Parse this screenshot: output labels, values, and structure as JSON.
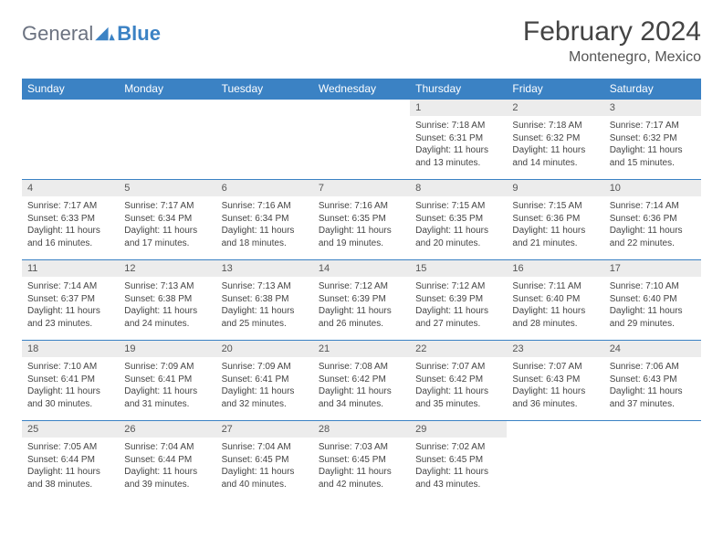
{
  "brand": {
    "name1": "General",
    "name2": "Blue"
  },
  "title": "February 2024",
  "location": "Montenegro, Mexico",
  "colors": {
    "header_bg": "#3b82c4",
    "daynum_bg": "#ececec",
    "border": "#3b82c4"
  },
  "weekdays": [
    "Sunday",
    "Monday",
    "Tuesday",
    "Wednesday",
    "Thursday",
    "Friday",
    "Saturday"
  ],
  "grid": [
    [
      null,
      null,
      null,
      null,
      {
        "n": "1",
        "sr": "7:18 AM",
        "ss": "6:31 PM",
        "dlh": "11",
        "dlm": "13"
      },
      {
        "n": "2",
        "sr": "7:18 AM",
        "ss": "6:32 PM",
        "dlh": "11",
        "dlm": "14"
      },
      {
        "n": "3",
        "sr": "7:17 AM",
        "ss": "6:32 PM",
        "dlh": "11",
        "dlm": "15"
      }
    ],
    [
      {
        "n": "4",
        "sr": "7:17 AM",
        "ss": "6:33 PM",
        "dlh": "11",
        "dlm": "16"
      },
      {
        "n": "5",
        "sr": "7:17 AM",
        "ss": "6:34 PM",
        "dlh": "11",
        "dlm": "17"
      },
      {
        "n": "6",
        "sr": "7:16 AM",
        "ss": "6:34 PM",
        "dlh": "11",
        "dlm": "18"
      },
      {
        "n": "7",
        "sr": "7:16 AM",
        "ss": "6:35 PM",
        "dlh": "11",
        "dlm": "19"
      },
      {
        "n": "8",
        "sr": "7:15 AM",
        "ss": "6:35 PM",
        "dlh": "11",
        "dlm": "20"
      },
      {
        "n": "9",
        "sr": "7:15 AM",
        "ss": "6:36 PM",
        "dlh": "11",
        "dlm": "21"
      },
      {
        "n": "10",
        "sr": "7:14 AM",
        "ss": "6:36 PM",
        "dlh": "11",
        "dlm": "22"
      }
    ],
    [
      {
        "n": "11",
        "sr": "7:14 AM",
        "ss": "6:37 PM",
        "dlh": "11",
        "dlm": "23"
      },
      {
        "n": "12",
        "sr": "7:13 AM",
        "ss": "6:38 PM",
        "dlh": "11",
        "dlm": "24"
      },
      {
        "n": "13",
        "sr": "7:13 AM",
        "ss": "6:38 PM",
        "dlh": "11",
        "dlm": "25"
      },
      {
        "n": "14",
        "sr": "7:12 AM",
        "ss": "6:39 PM",
        "dlh": "11",
        "dlm": "26"
      },
      {
        "n": "15",
        "sr": "7:12 AM",
        "ss": "6:39 PM",
        "dlh": "11",
        "dlm": "27"
      },
      {
        "n": "16",
        "sr": "7:11 AM",
        "ss": "6:40 PM",
        "dlh": "11",
        "dlm": "28"
      },
      {
        "n": "17",
        "sr": "7:10 AM",
        "ss": "6:40 PM",
        "dlh": "11",
        "dlm": "29"
      }
    ],
    [
      {
        "n": "18",
        "sr": "7:10 AM",
        "ss": "6:41 PM",
        "dlh": "11",
        "dlm": "30"
      },
      {
        "n": "19",
        "sr": "7:09 AM",
        "ss": "6:41 PM",
        "dlh": "11",
        "dlm": "31"
      },
      {
        "n": "20",
        "sr": "7:09 AM",
        "ss": "6:41 PM",
        "dlh": "11",
        "dlm": "32"
      },
      {
        "n": "21",
        "sr": "7:08 AM",
        "ss": "6:42 PM",
        "dlh": "11",
        "dlm": "34"
      },
      {
        "n": "22",
        "sr": "7:07 AM",
        "ss": "6:42 PM",
        "dlh": "11",
        "dlm": "35"
      },
      {
        "n": "23",
        "sr": "7:07 AM",
        "ss": "6:43 PM",
        "dlh": "11",
        "dlm": "36"
      },
      {
        "n": "24",
        "sr": "7:06 AM",
        "ss": "6:43 PM",
        "dlh": "11",
        "dlm": "37"
      }
    ],
    [
      {
        "n": "25",
        "sr": "7:05 AM",
        "ss": "6:44 PM",
        "dlh": "11",
        "dlm": "38"
      },
      {
        "n": "26",
        "sr": "7:04 AM",
        "ss": "6:44 PM",
        "dlh": "11",
        "dlm": "39"
      },
      {
        "n": "27",
        "sr": "7:04 AM",
        "ss": "6:45 PM",
        "dlh": "11",
        "dlm": "40"
      },
      {
        "n": "28",
        "sr": "7:03 AM",
        "ss": "6:45 PM",
        "dlh": "11",
        "dlm": "42"
      },
      {
        "n": "29",
        "sr": "7:02 AM",
        "ss": "6:45 PM",
        "dlh": "11",
        "dlm": "43"
      },
      null,
      null
    ]
  ],
  "labels": {
    "sunrise": "Sunrise:",
    "sunset": "Sunset:",
    "daylight": "Daylight:",
    "hours": "hours",
    "and": "and",
    "minutes": "minutes."
  }
}
